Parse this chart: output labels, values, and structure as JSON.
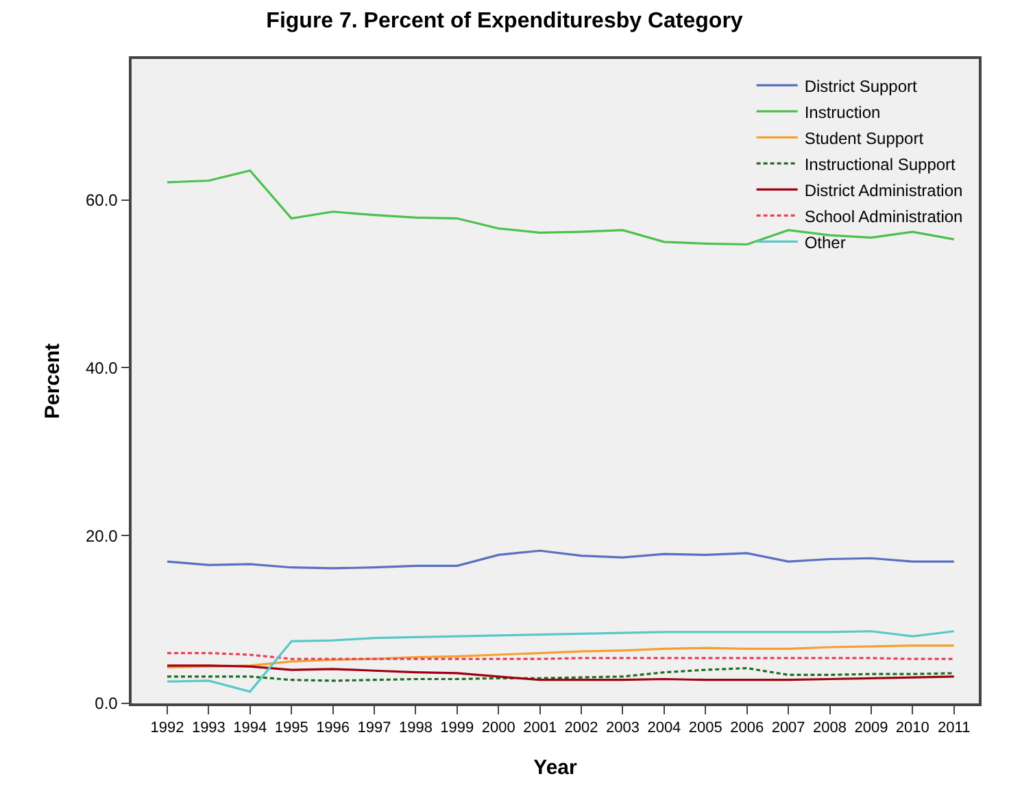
{
  "chart_data": {
    "type": "line",
    "title": "Figure 7. Percent of Expendituresby Category",
    "xlabel": "Year",
    "ylabel": "Percent",
    "x": [
      1992,
      1993,
      1994,
      1995,
      1996,
      1997,
      1998,
      1999,
      2000,
      2001,
      2002,
      2003,
      2004,
      2005,
      2006,
      2007,
      2008,
      2009,
      2010,
      2011
    ],
    "xlim": [
      1991.14,
      2011.6
    ],
    "xticks": [
      1992,
      1993,
      1994,
      1995,
      1996,
      1997,
      1998,
      1999,
      2000,
      2001,
      2002,
      2003,
      2004,
      2005,
      2006,
      2007,
      2008,
      2009,
      2010,
      2011
    ],
    "ylim": [
      0,
      76.8
    ],
    "yticks": [
      {
        "value": 0,
        "label": "0.0"
      },
      {
        "value": 20,
        "label": "20.0"
      },
      {
        "value": 40,
        "label": "40.0"
      },
      {
        "value": 60,
        "label": "60.0"
      }
    ],
    "grid": false,
    "legend": "top right",
    "marker": "none",
    "series": [
      {
        "name": "District Support",
        "color": "#5a6fc0",
        "values": [
          16.9,
          16.5,
          16.6,
          16.2,
          16.1,
          16.2,
          16.4,
          16.4,
          17.7,
          18.2,
          17.6,
          17.4,
          17.8,
          17.7,
          17.9,
          16.9,
          17.2,
          17.3,
          16.9,
          16.9
        ]
      },
      {
        "name": "Instruction",
        "color": "#4cc04c",
        "values": [
          62.1,
          62.3,
          63.5,
          57.8,
          58.6,
          58.2,
          57.9,
          57.8,
          56.6,
          56.1,
          56.2,
          56.4,
          55.0,
          54.8,
          54.7,
          56.4,
          55.8,
          55.5,
          56.2,
          55.3
        ]
      },
      {
        "name": "Student Support",
        "color": "#f5a030",
        "values": [
          4.3,
          4.4,
          4.5,
          5.0,
          5.2,
          5.3,
          5.5,
          5.6,
          5.8,
          6.0,
          6.2,
          6.3,
          6.5,
          6.6,
          6.5,
          6.5,
          6.7,
          6.8,
          6.9,
          6.9
        ]
      },
      {
        "name": "Instructional Support",
        "color": "#1e6e1e",
        "line_style": "dashed",
        "values": [
          3.2,
          3.2,
          3.2,
          2.8,
          2.7,
          2.8,
          2.9,
          2.9,
          3.0,
          3.0,
          3.1,
          3.2,
          3.7,
          4.0,
          4.2,
          3.4,
          3.4,
          3.5,
          3.5,
          3.6
        ]
      },
      {
        "name": "District Administration",
        "color": "#a00010",
        "values": [
          4.5,
          4.5,
          4.4,
          4.0,
          4.1,
          3.9,
          3.7,
          3.6,
          3.2,
          2.8,
          2.8,
          2.8,
          2.9,
          2.8,
          2.8,
          2.8,
          2.9,
          3.0,
          3.1,
          3.2
        ]
      },
      {
        "name": "School Administration",
        "color": "#e8405a",
        "line_style": "dashed",
        "values": [
          6.0,
          6.0,
          5.8,
          5.3,
          5.3,
          5.3,
          5.3,
          5.3,
          5.3,
          5.3,
          5.4,
          5.4,
          5.4,
          5.4,
          5.4,
          5.4,
          5.4,
          5.4,
          5.3,
          5.3
        ]
      },
      {
        "name": "Other",
        "color": "#5ac8c8",
        "values": [
          2.6,
          2.7,
          1.4,
          7.4,
          7.5,
          7.8,
          7.9,
          8.0,
          8.1,
          8.2,
          8.3,
          8.4,
          8.5,
          8.5,
          8.5,
          8.5,
          8.5,
          8.6,
          8.0,
          8.6
        ]
      }
    ]
  }
}
